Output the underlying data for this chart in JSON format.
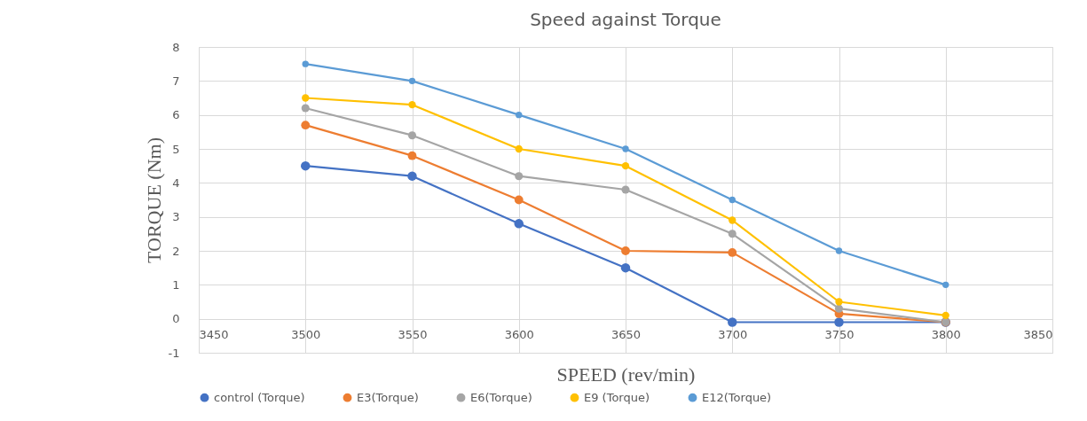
{
  "chart_data": {
    "type": "line",
    "title": "Speed against Torque",
    "xlabel": "SPEED (rev/min)",
    "ylabel": "TORQUE (Nm)",
    "x": [
      3500,
      3550,
      3600,
      3650,
      3700,
      3750,
      3800
    ],
    "series": [
      {
        "name": "control (Torque)",
        "color": "#4472c4",
        "values": [
          4.5,
          4.2,
          2.8,
          1.5,
          -0.1,
          -0.1,
          -0.1
        ]
      },
      {
        "name": "E3(Torque)",
        "color": "#ed7d31",
        "values": [
          5.7,
          4.8,
          3.5,
          2.0,
          1.95,
          0.15,
          -0.1
        ]
      },
      {
        "name": "E6(Torque)",
        "color": "#a5a5a5",
        "values": [
          6.2,
          5.4,
          4.2,
          3.8,
          2.5,
          0.3,
          -0.1
        ]
      },
      {
        "name": "E9 (Torque)",
        "color": "#ffc000",
        "values": [
          6.5,
          6.3,
          5.0,
          4.5,
          2.9,
          0.5,
          0.1
        ]
      },
      {
        "name": "E12(Torque)",
        "color": "#5b9bd5",
        "values": [
          7.5,
          7.0,
          6.0,
          5.0,
          3.5,
          2.0,
          1.0
        ]
      }
    ],
    "xlim": [
      3450,
      3850
    ],
    "xticks": [
      3450,
      3500,
      3550,
      3600,
      3650,
      3700,
      3750,
      3800,
      3850
    ],
    "ylim": [
      -1,
      8
    ],
    "yticks": [
      -1,
      0,
      1,
      2,
      3,
      4,
      5,
      6,
      7,
      8
    ],
    "grid": true,
    "legend": "bottom",
    "marker": "circle",
    "line_style": "solid"
  }
}
